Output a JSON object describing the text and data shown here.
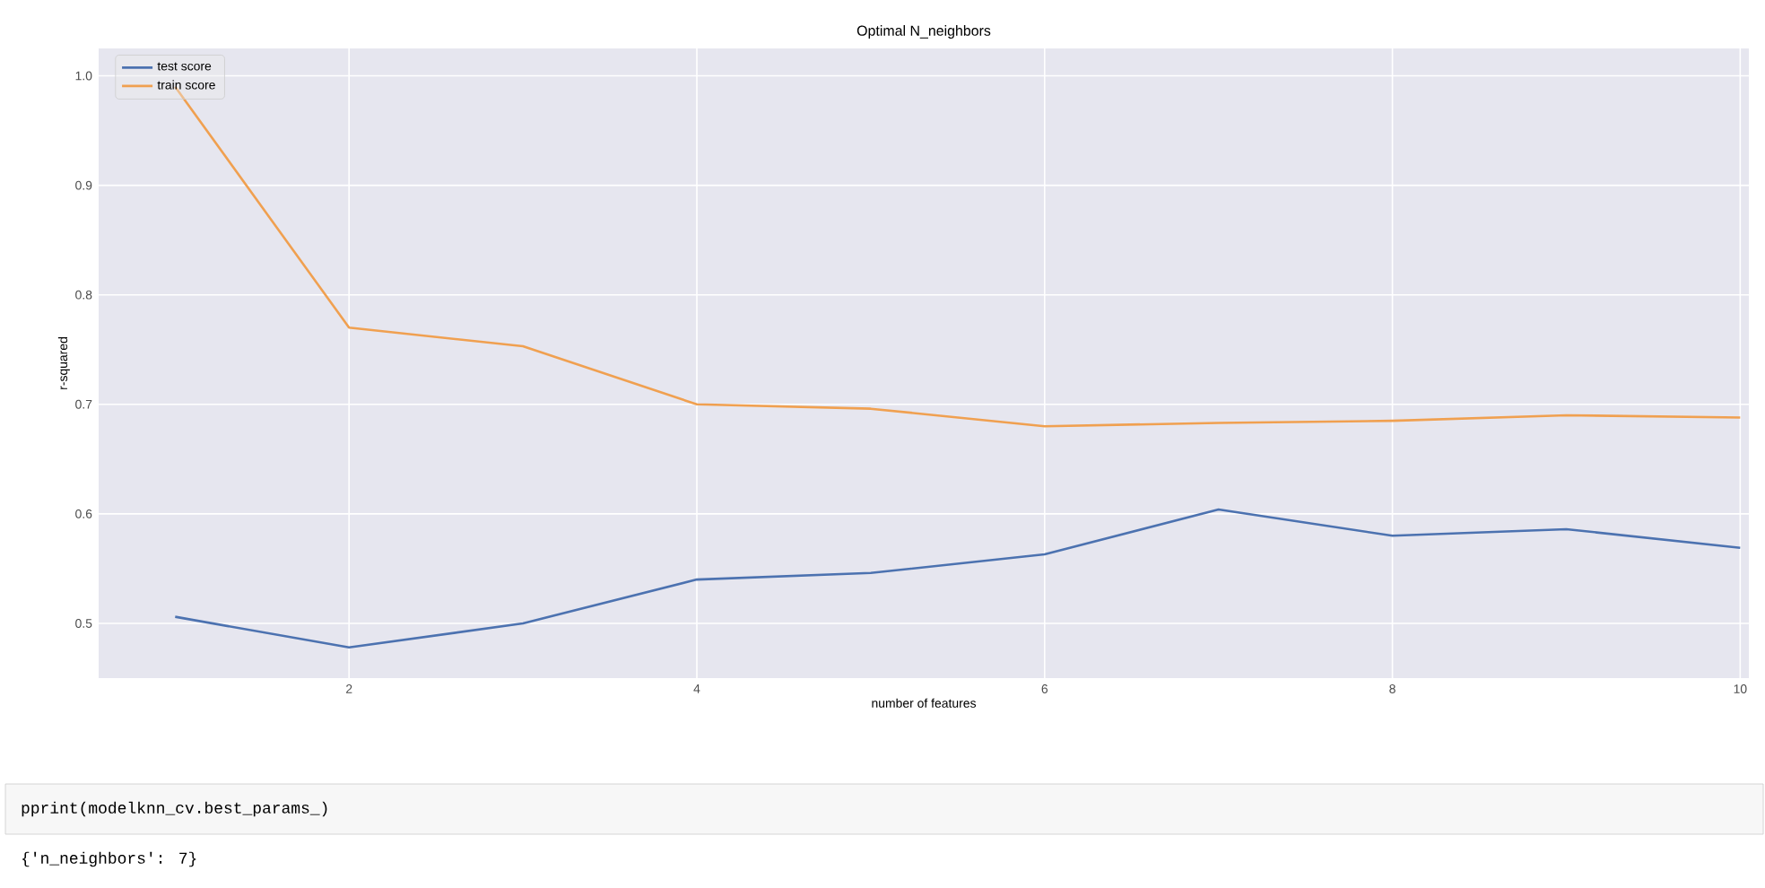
{
  "chart_data": {
    "type": "line",
    "title": "Optimal N_neighbors",
    "xlabel": "number of features",
    "ylabel": "r-squared",
    "x": [
      1,
      2,
      3,
      4,
      5,
      6,
      7,
      8,
      9,
      10
    ],
    "series": [
      {
        "name": "test score",
        "color": "#4c72b0",
        "values": [
          0.506,
          0.478,
          0.5,
          0.54,
          0.546,
          0.563,
          0.604,
          0.58,
          0.586,
          0.569
        ]
      },
      {
        "name": "train score",
        "color": "#f0a050",
        "values": [
          0.99,
          0.77,
          0.753,
          0.7,
          0.696,
          0.68,
          0.683,
          0.685,
          0.69,
          0.688
        ]
      }
    ],
    "xlim": [
      0.56,
      10.05
    ],
    "ylim": [
      0.45,
      1.025
    ],
    "xticks": [
      2,
      4,
      6,
      8,
      10
    ],
    "yticks": [
      0.5,
      0.6,
      0.7,
      0.8,
      0.9,
      {
        "value": 1,
        "label": "1.0"
      }
    ],
    "grid": true,
    "legend": "top left",
    "annotations": [
      "pprint(modelknn_cv.best_params_)",
      "{'n_neighbors': 7}"
    ]
  }
}
